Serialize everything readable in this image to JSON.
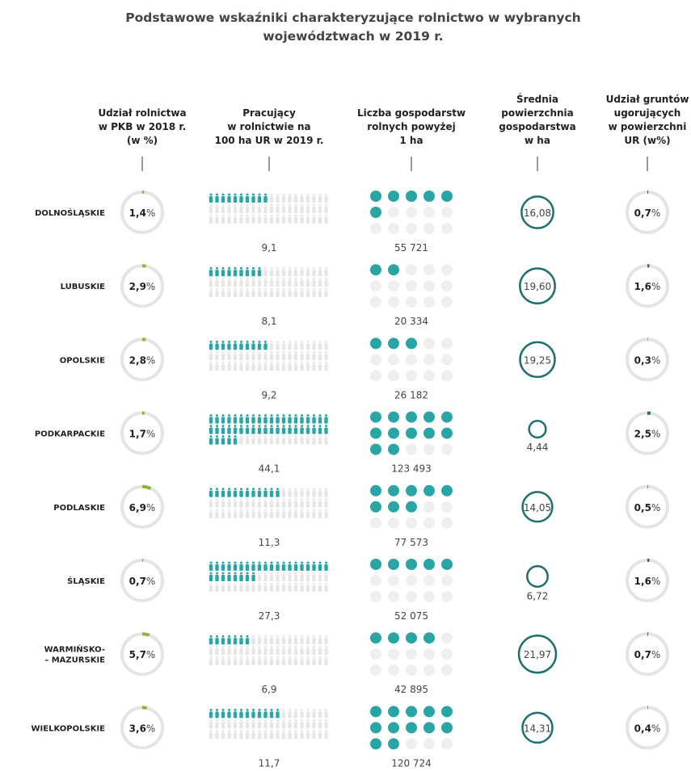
{
  "title": [
    "Podstawowe wskaźniki charakteryzujące rolnictwo w wybranych",
    "województwach w 2019 r."
  ],
  "unit": "%",
  "headers": [
    [
      "Udział rolnictwa",
      "w PKB w 2018 r.",
      "(w %)"
    ],
    [
      "Pracujący",
      "w rolnictwie na",
      "100 ha UR w 2019 r."
    ],
    [
      "Liczba gospodarstw",
      "rolnych powyżej",
      "1 ha"
    ],
    [
      "Średnia",
      "powierzchnia",
      "gospodarstwa",
      "w ha"
    ],
    [
      "Udział gruntów",
      "ugorujących",
      "w powierzchni",
      "UR (w%)"
    ]
  ],
  "rows": [
    {
      "region": [
        "DOLNOŚLĄSKIE"
      ],
      "gdp": 1.4,
      "gdp_label": "1,4",
      "workers": 9.1,
      "workers_label": "9,1",
      "farms": 55721,
      "farms_label": "55 721",
      "area": 16.08,
      "area_label": "16,08",
      "fallow": 0.7,
      "fallow_label": "0,7"
    },
    {
      "region": [
        "LUBUSKIE"
      ],
      "gdp": 2.9,
      "gdp_label": "2,9",
      "workers": 8.1,
      "workers_label": "8,1",
      "farms": 20334,
      "farms_label": "20 334",
      "area": 19.6,
      "area_label": "19,60",
      "fallow": 1.6,
      "fallow_label": "1,6"
    },
    {
      "region": [
        "OPOLSKIE"
      ],
      "gdp": 2.8,
      "gdp_label": "2,8",
      "workers": 9.2,
      "workers_label": "9,2",
      "farms": 26182,
      "farms_label": "26 182",
      "area": 19.25,
      "area_label": "19,25",
      "fallow": 0.3,
      "fallow_label": "0,3"
    },
    {
      "region": [
        "PODKARPACKIE"
      ],
      "gdp": 1.7,
      "gdp_label": "1,7",
      "workers": 44.1,
      "workers_label": "44,1",
      "farms": 123493,
      "farms_label": "123 493",
      "area": 4.44,
      "area_label": "4,44",
      "fallow": 2.5,
      "fallow_label": "2,5"
    },
    {
      "region": [
        "PODLASKIE"
      ],
      "gdp": 6.9,
      "gdp_label": "6,9",
      "workers": 11.3,
      "workers_label": "11,3",
      "farms": 77573,
      "farms_label": "77 573",
      "area": 14.05,
      "area_label": "14,05",
      "fallow": 0.5,
      "fallow_label": "0,5"
    },
    {
      "region": [
        "ŚLĄSKIE"
      ],
      "gdp": 0.7,
      "gdp_label": "0,7",
      "workers": 27.3,
      "workers_label": "27,3",
      "farms": 52075,
      "farms_label": "52 075",
      "area": 6.72,
      "area_label": "6,72",
      "fallow": 1.6,
      "fallow_label": "1,6"
    },
    {
      "region": [
        "WARMIŃSKO-",
        "– MAZURSKIE"
      ],
      "gdp": 5.7,
      "gdp_label": "5,7",
      "workers": 6.9,
      "workers_label": "6,9",
      "farms": 42895,
      "farms_label": "42 895",
      "area": 21.97,
      "area_label": "21,97",
      "fallow": 0.7,
      "fallow_label": "0,7"
    },
    {
      "region": [
        "WIELKOPOLSKIE"
      ],
      "gdp": 3.6,
      "gdp_label": "3,6",
      "workers": 11.7,
      "workers_label": "11,7",
      "farms": 120724,
      "farms_label": "120 724",
      "area": 14.31,
      "area_label": "14,31",
      "fallow": 0.4,
      "fallow_label": "0,4"
    }
  ]
}
